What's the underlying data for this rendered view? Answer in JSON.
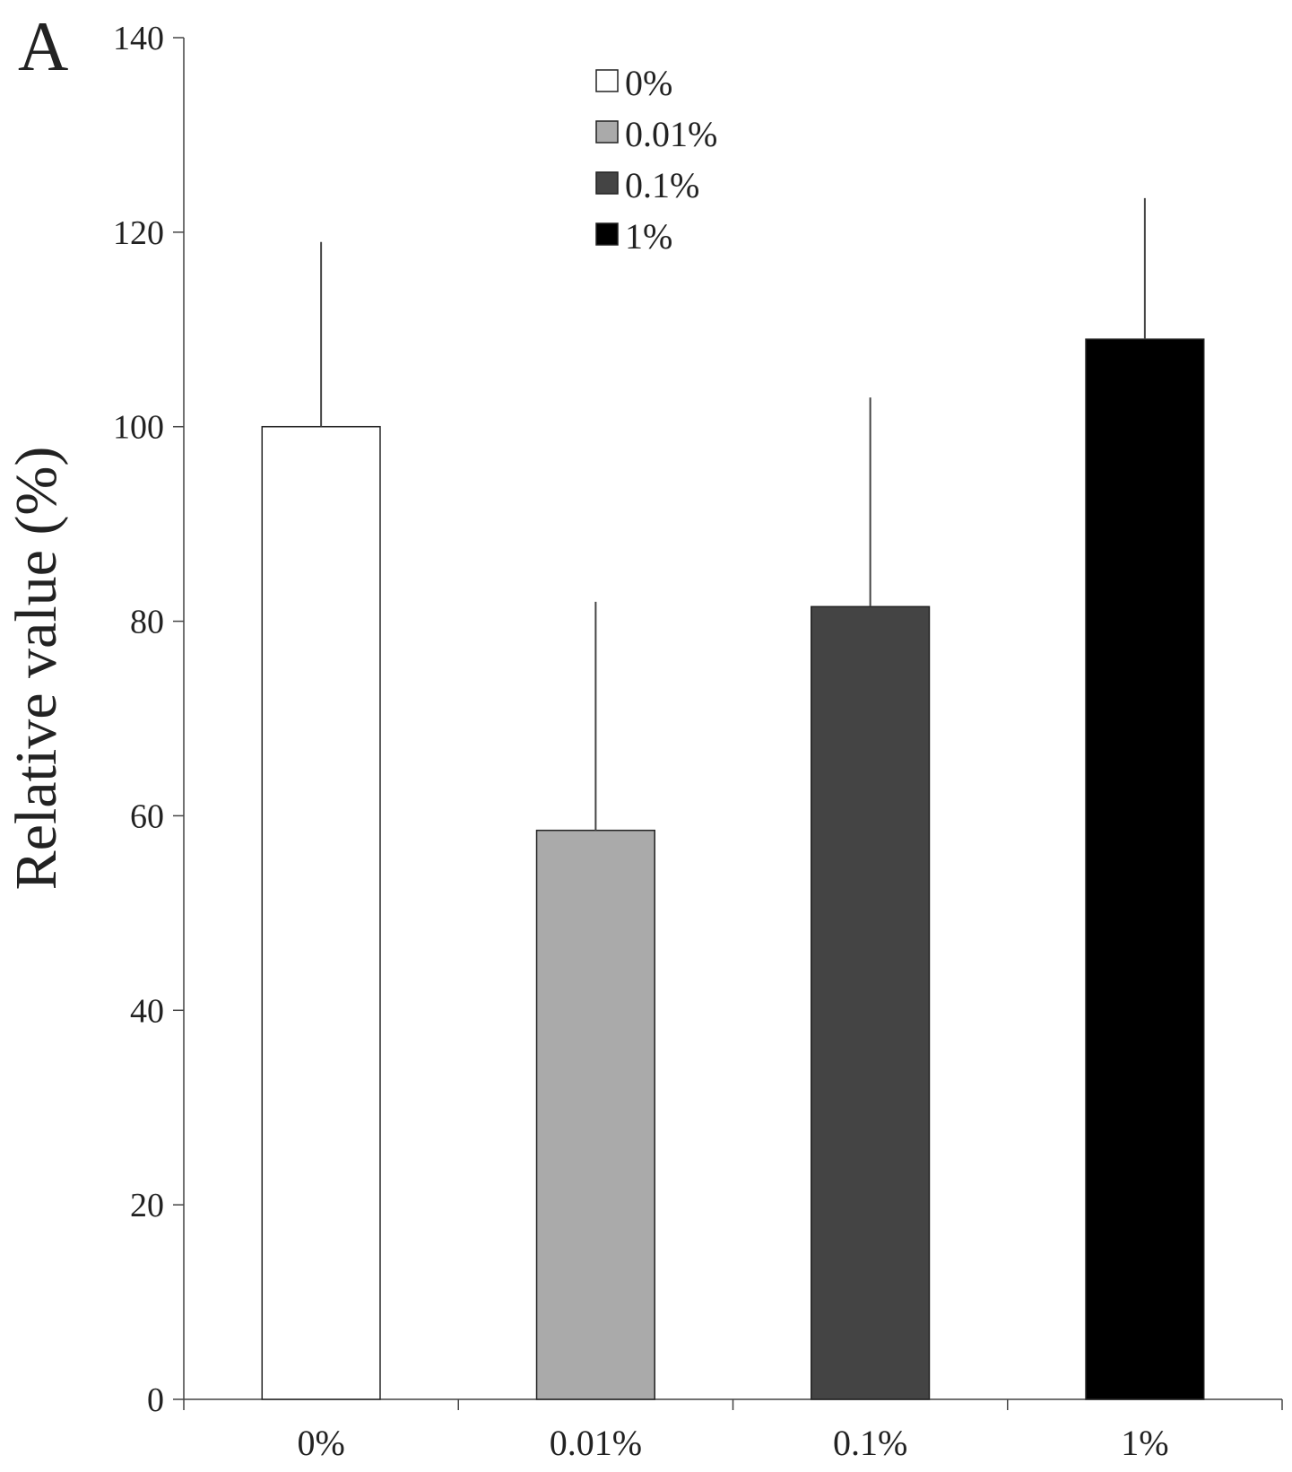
{
  "panel_label": "A",
  "chart_data": {
    "type": "bar",
    "title": "",
    "xlabel": "",
    "ylabel": "Relative value (%)",
    "ylim": [
      0,
      140
    ],
    "yticks": [
      0,
      20,
      40,
      60,
      80,
      100,
      120,
      140
    ],
    "categories": [
      "0%",
      "0.01%",
      "0.1%",
      "1%"
    ],
    "values": [
      100,
      58.5,
      81.5,
      109
    ],
    "error_plus": [
      19,
      23.5,
      21.5,
      14.5
    ],
    "bar_colors": [
      "#ffffff",
      "#aaaaaa",
      "#444444",
      "#000000"
    ],
    "legend": {
      "position": "top-center",
      "entries": [
        {
          "label": "0%",
          "color": "#ffffff"
        },
        {
          "label": "0.01%",
          "color": "#aaaaaa"
        },
        {
          "label": "0.1%",
          "color": "#444444"
        },
        {
          "label": "1%",
          "color": "#000000"
        }
      ]
    },
    "grid": false
  }
}
